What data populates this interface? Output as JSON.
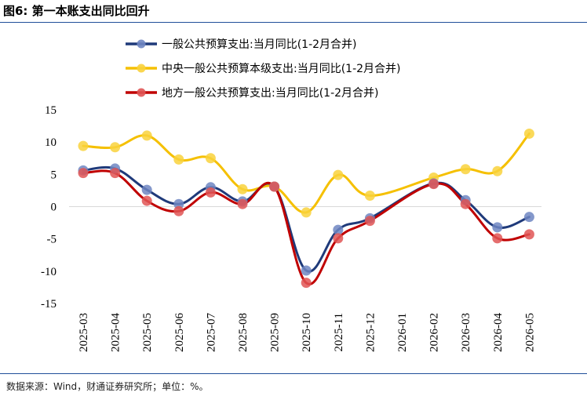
{
  "figure": {
    "title": "图6: 第一本账支出同比回升",
    "source": "数据来源：Wind，财通证券研究所；单位：%。"
  },
  "chart_data": {
    "type": "line",
    "categories": [
      "2025-03",
      "2025-04",
      "2025-05",
      "2025-06",
      "2025-07",
      "2025-08",
      "2025-09",
      "2025-10",
      "2025-11",
      "2025-12",
      "2026-01",
      "2026-02",
      "2026-03",
      "2026-04",
      "2026-05"
    ],
    "ylim": [
      -15,
      15
    ],
    "yticks": [
      15,
      10,
      5,
      0,
      -5,
      -10,
      -15
    ],
    "legend_position": "top-left",
    "grid": false,
    "series": [
      {
        "name": "一般公共预算支出:当月同比(1-2月合并)",
        "color": "#1f3a7a",
        "marker_color": "#6f86c2",
        "values": [
          5.6,
          5.9,
          2.6,
          0.4,
          3.0,
          0.8,
          3.1,
          -9.9,
          -3.6,
          -1.8,
          null,
          3.6,
          1.0,
          -3.2,
          -1.6
        ]
      },
      {
        "name": "中央一般公共预算本级支出:当月同比(1-2月合并)",
        "color": "#f5c000",
        "marker_color": "#f9d23c",
        "values": [
          9.4,
          9.2,
          11.0,
          7.3,
          7.5,
          2.7,
          3.1,
          -0.9,
          4.9,
          1.7,
          null,
          4.5,
          5.8,
          5.5,
          11.3
        ]
      },
      {
        "name": "地方一般公共预算支出:当月同比(1-2月合并)",
        "color": "#c00000",
        "marker_color": "#e05555",
        "values": [
          5.2,
          5.2,
          0.9,
          -0.7,
          2.2,
          0.4,
          3.1,
          -11.8,
          -4.9,
          -2.2,
          null,
          3.5,
          0.4,
          -4.9,
          -4.3
        ]
      }
    ]
  }
}
